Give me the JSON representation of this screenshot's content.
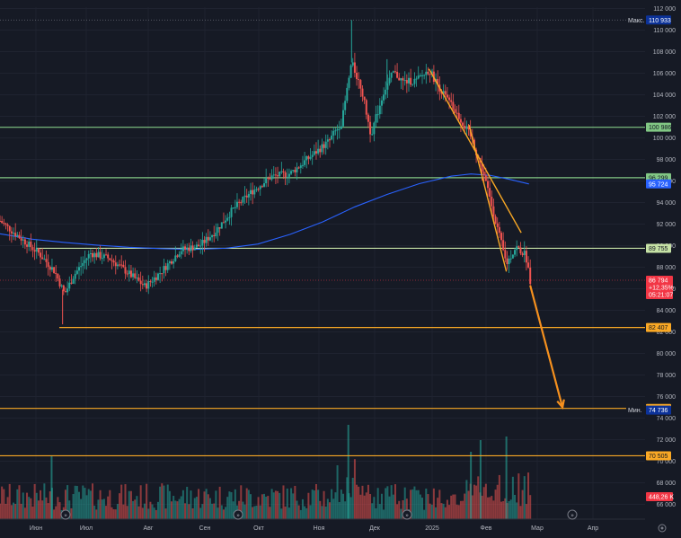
{
  "chart_data": {
    "type": "candlestick",
    "y_axis": {
      "min": 65000,
      "max": 112000,
      "ticks": [
        66000,
        68000,
        70000,
        72000,
        74000,
        76000,
        78000,
        80000,
        82000,
        84000,
        86000,
        88000,
        90000,
        92000,
        94000,
        96000,
        98000,
        100000,
        102000,
        104000,
        106000,
        108000,
        110000,
        112000
      ],
      "tick_labels": [
        "66 000",
        "68 000",
        "70 000",
        "72 000",
        "74 000",
        "76 000",
        "78 000",
        "80 000",
        "82 000",
        "84 000",
        "86 000",
        "88 000",
        "90 000",
        "92 000",
        "94 000",
        "96 000",
        "98 000",
        "100 000",
        "102 000",
        "104 000",
        "106 000",
        "108 000",
        "110 000",
        "112 000"
      ]
    },
    "x_axis": {
      "labels": [
        "Июн",
        "Июл",
        "Авг",
        "Сен",
        "Окт",
        "Ноя",
        "Дек",
        "2025",
        "Фев",
        "Мар",
        "Апр"
      ]
    },
    "price_labels": [
      {
        "prefix": "Макс.",
        "value": "110 933",
        "price": 110933,
        "color": "#0c3299"
      },
      {
        "prefix": "",
        "value": "100 986",
        "price": 100986,
        "color": "#81c784"
      },
      {
        "prefix": "",
        "value": "96 299",
        "price": 96299,
        "color": "#81c784"
      },
      {
        "prefix": "",
        "value": "95 724",
        "price": 95724,
        "color": "#2962ff"
      },
      {
        "prefix": "",
        "value": "89 755",
        "price": 89755,
        "color": "#c5e1a5"
      },
      {
        "prefix": "",
        "value": "82 407",
        "price": 82407,
        "color": "#f9a825"
      },
      {
        "prefix": "",
        "value": "74 900",
        "price": 74900,
        "color": "#f9a825"
      },
      {
        "prefix": "Мин.",
        "value": "74 736",
        "price": 74736,
        "color": "#0c3299"
      },
      {
        "prefix": "",
        "value": "70 505",
        "price": 70505,
        "color": "#f9a825"
      }
    ],
    "current_price": {
      "price": 86794,
      "lines": [
        "86 794",
        "+12,35%",
        "05:21:07"
      ],
      "color": "#f23645"
    },
    "volume_label": "448,26 K",
    "horizontal_levels": [
      {
        "price": 100986,
        "color": "#81c784"
      },
      {
        "price": 96299,
        "color": "#81c784"
      },
      {
        "price": 89755,
        "color": "#c5e1a5"
      },
      {
        "price": 82407,
        "color": "#f9a825"
      },
      {
        "price": 74900,
        "color": "#f9a825"
      },
      {
        "price": 70505,
        "color": "#f9a825"
      }
    ],
    "trendlines": [
      {
        "from": [
          0.665,
          106400
        ],
        "to": [
          0.808,
          91200
        ],
        "color": "#f9a825"
      },
      {
        "from": [
          0.727,
          101200
        ],
        "to": [
          0.785,
          87600
        ],
        "color": "#f9a825"
      }
    ],
    "projection_arrow": {
      "from": [
        0.822,
        86300
      ],
      "to": [
        0.872,
        75000
      ],
      "color": "#f5901e"
    },
    "moving_average": {
      "color": "#2962ff",
      "points": [
        [
          0.0,
          91100
        ],
        [
          0.05,
          90600
        ],
        [
          0.1,
          90300
        ],
        [
          0.15,
          90050
        ],
        [
          0.2,
          89850
        ],
        [
          0.25,
          89720
        ],
        [
          0.3,
          89650
        ],
        [
          0.35,
          89760
        ],
        [
          0.4,
          90150
        ],
        [
          0.45,
          91050
        ],
        [
          0.5,
          92200
        ],
        [
          0.55,
          93600
        ],
        [
          0.6,
          94750
        ],
        [
          0.65,
          95750
        ],
        [
          0.7,
          96450
        ],
        [
          0.73,
          96650
        ],
        [
          0.76,
          96520
        ],
        [
          0.79,
          96150
        ],
        [
          0.82,
          95724
        ]
      ]
    },
    "candles": {
      "close_path": [
        [
          0.0,
          92300
        ],
        [
          0.03,
          90800
        ],
        [
          0.06,
          89300
        ],
        [
          0.085,
          87600
        ],
        [
          0.1,
          85500
        ],
        [
          0.115,
          87300
        ],
        [
          0.14,
          89300
        ],
        [
          0.17,
          88800
        ],
        [
          0.2,
          87400
        ],
        [
          0.225,
          86200
        ],
        [
          0.25,
          87600
        ],
        [
          0.28,
          89600
        ],
        [
          0.31,
          90000
        ],
        [
          0.335,
          91400
        ],
        [
          0.36,
          93300
        ],
        [
          0.39,
          95000
        ],
        [
          0.42,
          96400
        ],
        [
          0.45,
          96700
        ],
        [
          0.48,
          98200
        ],
        [
          0.51,
          99700
        ],
        [
          0.53,
          101500
        ],
        [
          0.545,
          107000
        ],
        [
          0.56,
          104600
        ],
        [
          0.575,
          100300
        ],
        [
          0.595,
          104300
        ],
        [
          0.61,
          106100
        ],
        [
          0.625,
          105200
        ],
        [
          0.645,
          105300
        ],
        [
          0.665,
          106300
        ],
        [
          0.685,
          104300
        ],
        [
          0.71,
          102100
        ],
        [
          0.73,
          100100
        ],
        [
          0.75,
          96600
        ],
        [
          0.765,
          93100
        ],
        [
          0.785,
          88300
        ],
        [
          0.8,
          89900
        ],
        [
          0.815,
          89100
        ],
        [
          0.822,
          86794
        ]
      ],
      "highlights": [
        [
          0.097,
          82700
        ],
        [
          0.545,
          110933
        ],
        [
          0.6,
          107300
        ],
        [
          0.67,
          106400
        ]
      ]
    }
  }
}
